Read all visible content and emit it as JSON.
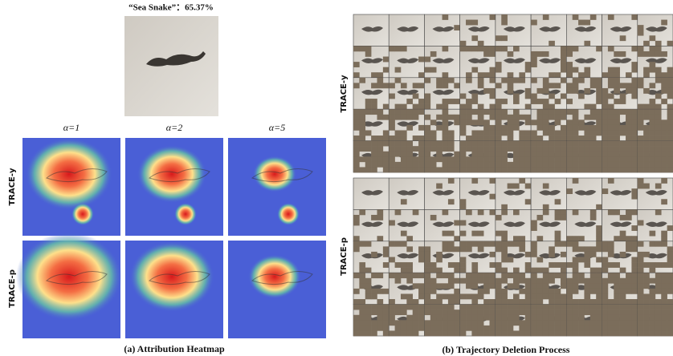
{
  "left": {
    "prediction": "“Sea Snake”：65.37%",
    "columns": [
      "α=1",
      "α=2",
      "α=5"
    ],
    "rows": [
      "TRACE-y",
      "TRACE-p"
    ],
    "caption": "(a) Attribution Heatmap"
  },
  "right": {
    "rows": [
      "TRACE-y",
      "TRACE-p"
    ],
    "caption": "(b) Trajectory Deletion Process"
  }
}
